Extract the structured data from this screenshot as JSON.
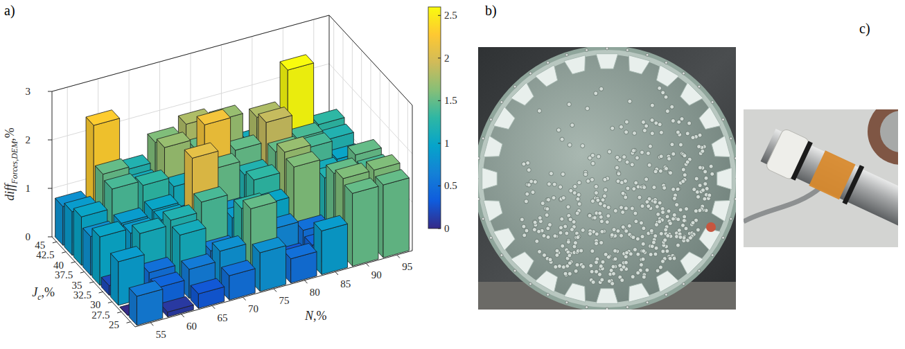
{
  "chart_data": {
    "type": "bar3d",
    "x": [
      55,
      60,
      65,
      70,
      75,
      80,
      85,
      90,
      95
    ],
    "y": [
      25,
      27.5,
      30,
      32.5,
      35,
      37.5,
      40,
      42.5,
      45
    ],
    "cells": [
      [
        0.6,
        0.1,
        0.3,
        0.5,
        0.8,
        0.5,
        0.9,
        1.5,
        1.5
      ],
      [
        0.0,
        0.4,
        0.6,
        0.8,
        1.5,
        0.3,
        0.4,
        1.6,
        1.6
      ],
      [
        0.9,
        0.5,
        1.1,
        0.6,
        1.3,
        0.7,
        0.5,
        1.5,
        1.4
      ],
      [
        0.2,
        1.1,
        1.2,
        1.4,
        0.9,
        1.0,
        1.6,
        1.2,
        1.5
      ],
      [
        1.0,
        0.9,
        1.0,
        2.1,
        0.8,
        1.3,
        1.7,
        1.1,
        0.9
      ],
      [
        0.8,
        0.9,
        1.0,
        0.7,
        1.5,
        1.2,
        1.5,
        1.4,
        1.0
      ],
      [
        1.0,
        1.4,
        1.3,
        1.1,
        2.2,
        1.5,
        1.9,
        1.4,
        1.2
      ],
      [
        0.9,
        1.5,
        1.1,
        1.7,
        1.5,
        1.0,
        1.8,
        2.6,
        1.3
      ],
      [
        0.8,
        2.3,
        1.2,
        1.6,
        1.8,
        1.7,
        1.1,
        1.1,
        1.0
      ]
    ],
    "xlabel": {
      "text": "N",
      "unit": ",%"
    },
    "ylabel": {
      "text": "J",
      "subscript": "c",
      "unit": ",%"
    },
    "zlabel": {
      "text": "diff",
      "subscript": "Forces,DEM",
      "unit": ",%"
    },
    "xlim": [
      52.5,
      97.5
    ],
    "ylim": [
      23.75,
      46.25
    ],
    "zlim": [
      0,
      3
    ],
    "xticks": [
      55,
      60,
      65,
      70,
      75,
      80,
      85,
      90,
      95
    ],
    "yticks": [
      25,
      27.5,
      30,
      32.5,
      35,
      37.5,
      40,
      42.5,
      45
    ],
    "zticks": [
      0,
      1,
      2,
      3
    ],
    "colorbar": {
      "lim": [
        0,
        2.6
      ],
      "ticks": [
        0,
        0.5,
        1,
        1.5,
        2,
        2.5
      ]
    },
    "grid": true
  },
  "panels": {
    "labels": [
      "a)",
      "b)",
      "c)"
    ]
  }
}
